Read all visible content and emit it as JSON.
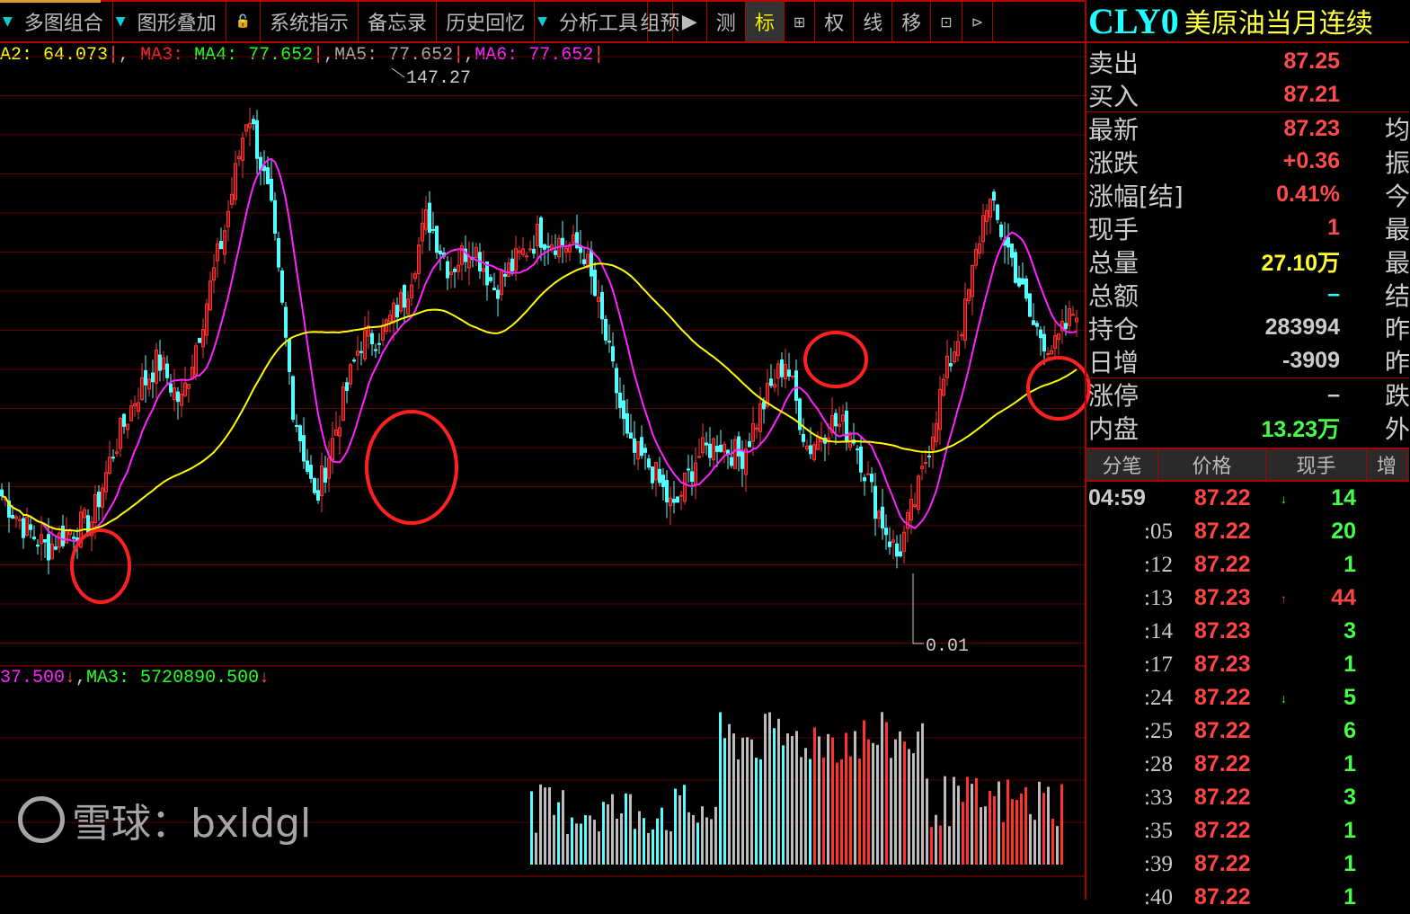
{
  "toolbar": {
    "items": [
      "多图组合",
      "图形叠加",
      "系统指示",
      "备忘录",
      "历史回忆",
      "分析工具",
      "组预",
      "测",
      "标",
      "权",
      "线",
      "移"
    ],
    "active": "标"
  },
  "legend": {
    "ma2": "A2: 64.073",
    "ma3": "MA3: ",
    "ma4": "MA4: 77.652",
    "ma5": "MA5: 77.652",
    "ma6": "MA6: 77.652",
    "sep": ","
  },
  "chart": {
    "high_label": "147.27",
    "low_label": "0.01"
  },
  "volume_legend": {
    "a": "37.500",
    "b": "MA3: 5720890.500"
  },
  "colors": {
    "up": "#ff3232",
    "down": "#54ffff",
    "ma_short": "#ff22ff",
    "ma_long": "#ffff00",
    "grid": "#5a0000",
    "circle": "#ff2020"
  },
  "chart_data": {
    "type": "candlestick",
    "ylim": [
      0.01,
      147.27
    ],
    "close_path": [
      38.6,
      30.7,
      24.8,
      29.5,
      31.9,
      50.7,
      64.7,
      74.1,
      62.4,
      85.8,
      109.3,
      139.8,
      114.0,
      62.4,
      36.6,
      57.7,
      78.8,
      81.2,
      90.6,
      111.6,
      97.6,
      104.6,
      92.9,
      99.9,
      106.9,
      104.6,
      102.3,
      78.8,
      50.7,
      46.0,
      34.3,
      48.4,
      53.0,
      48.4,
      62.4,
      74.1,
      50.7,
      57.7,
      55.4,
      36.6,
      22.5,
      41.3,
      67.1,
      85.8,
      116.3,
      102.3,
      83.5,
      76.5,
      88.2
    ]
  },
  "quote": {
    "code": "CLY0",
    "name": "美原油当月连续",
    "rows": [
      {
        "label": "卖出",
        "value": "87.25",
        "color": "#ff4b4b",
        "ext": ""
      },
      {
        "label": "买入",
        "value": "87.21",
        "color": "#ff4b4b",
        "ext": ""
      },
      {
        "label": "最新",
        "value": "87.23",
        "color": "#ff4b4b",
        "ext": "均"
      },
      {
        "label": "涨跌",
        "value": "+0.36",
        "color": "#ff4b4b",
        "ext": "振"
      },
      {
        "label": "涨幅[结]",
        "value": "0.41%",
        "color": "#ff4b4b",
        "ext": "今"
      },
      {
        "label": "现手",
        "value": "1",
        "color": "#ff4b4b",
        "ext": "最"
      },
      {
        "label": "总量",
        "value": "27.10万",
        "color": "#ffff30",
        "ext": "最"
      },
      {
        "label": "总额",
        "value": "–",
        "color": "#2ff",
        "ext": "结"
      },
      {
        "label": "持仓",
        "value": "283994",
        "color": "#ccc",
        "ext": "昨"
      },
      {
        "label": "日增",
        "value": "-3909",
        "color": "#ccc",
        "ext": "昨"
      },
      {
        "label": "涨停",
        "value": "–",
        "color": "#ccc",
        "ext": "跌"
      },
      {
        "label": "内盘",
        "value": "13.23万",
        "color": "#4f4",
        "ext": "外"
      }
    ]
  },
  "ticks": {
    "headers": [
      "分笔",
      "价格",
      "现手",
      "增"
    ],
    "rows": [
      {
        "time": "04:59",
        "price": "87.22",
        "arrow": "↓",
        "vol": "14",
        "vcolor": "#4f4"
      },
      {
        "time": ":05",
        "price": "87.22",
        "arrow": "",
        "vol": "20",
        "vcolor": "#4f4"
      },
      {
        "time": ":12",
        "price": "87.22",
        "arrow": "",
        "vol": "1",
        "vcolor": "#4f4"
      },
      {
        "time": ":13",
        "price": "87.23",
        "arrow": "↑",
        "vol": "44",
        "vcolor": "#f44"
      },
      {
        "time": ":14",
        "price": "87.23",
        "arrow": "",
        "vol": "3",
        "vcolor": "#4f4"
      },
      {
        "time": ":17",
        "price": "87.23",
        "arrow": "",
        "vol": "1",
        "vcolor": "#4f4"
      },
      {
        "time": ":24",
        "price": "87.22",
        "arrow": "↓",
        "vol": "5",
        "vcolor": "#4f4"
      },
      {
        "time": ":25",
        "price": "87.22",
        "arrow": "",
        "vol": "6",
        "vcolor": "#4f4"
      },
      {
        "time": ":28",
        "price": "87.22",
        "arrow": "",
        "vol": "1",
        "vcolor": "#4f4"
      },
      {
        "time": ":33",
        "price": "87.22",
        "arrow": "",
        "vol": "3",
        "vcolor": "#4f4"
      },
      {
        "time": ":35",
        "price": "87.22",
        "arrow": "",
        "vol": "1",
        "vcolor": "#4f4"
      },
      {
        "time": ":39",
        "price": "87.22",
        "arrow": "",
        "vol": "1",
        "vcolor": "#4f4"
      },
      {
        "time": ":40",
        "price": "87.22",
        "arrow": "",
        "vol": "1",
        "vcolor": "#4f4"
      }
    ]
  },
  "watermark": "雪球：bxldgl"
}
